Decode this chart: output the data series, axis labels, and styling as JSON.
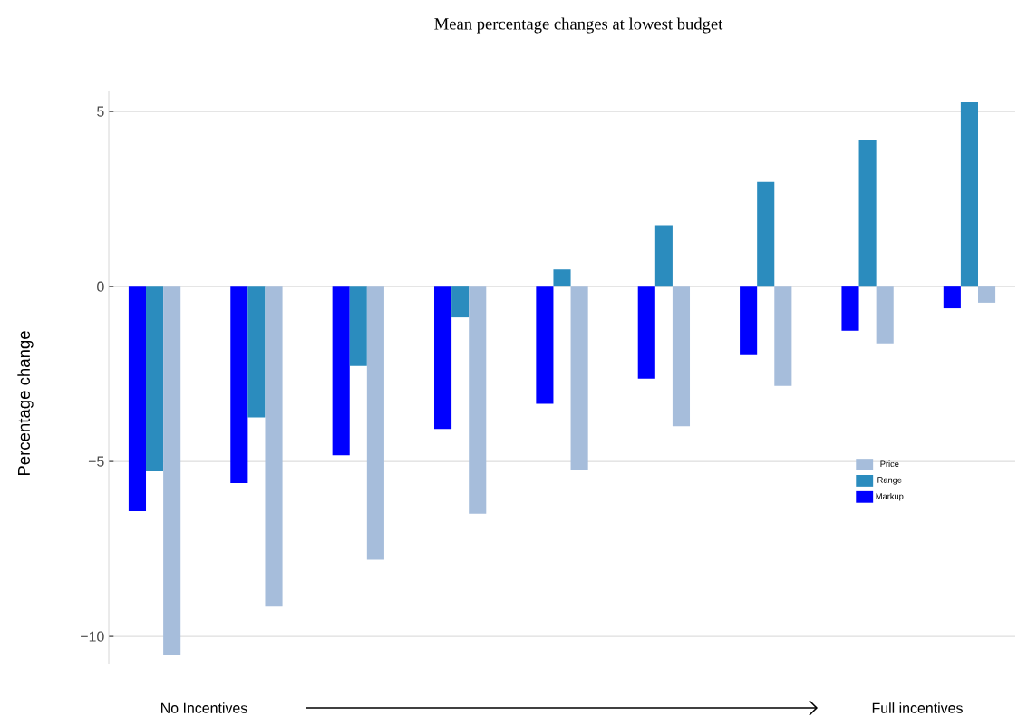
{
  "chart_data": {
    "type": "bar",
    "title": "Mean percentage changes at lowest budget",
    "ylabel": "Percentage change",
    "categories": [
      null,
      null,
      null,
      null,
      null,
      null,
      null,
      null,
      null
    ],
    "series": [
      {
        "name": "Markup",
        "color": "#0000ff",
        "values": [
          -6.42,
          -5.62,
          -4.82,
          -4.07,
          -3.35,
          -2.63,
          -1.96,
          -1.26,
          -0.62
        ]
      },
      {
        "name": "Range",
        "color": "#2b8cbe",
        "values": [
          -5.28,
          -3.74,
          -2.27,
          -0.88,
          0.49,
          1.75,
          2.99,
          4.18,
          5.28
        ]
      },
      {
        "name": "Price",
        "color": "#a6bddb",
        "values": [
          -10.54,
          -9.15,
          -7.81,
          -6.49,
          -5.23,
          -3.99,
          -2.84,
          -1.62,
          -0.46
        ]
      }
    ],
    "yticks": [
      {
        "value": -10,
        "label": "−10"
      },
      {
        "value": -5,
        "label": "−5"
      },
      0,
      5
    ],
    "ylim": [
      -10.8,
      5.6
    ],
    "grid": "y",
    "legend": "right",
    "annotations": [
      "No Incentives",
      "Full incentives"
    ]
  }
}
